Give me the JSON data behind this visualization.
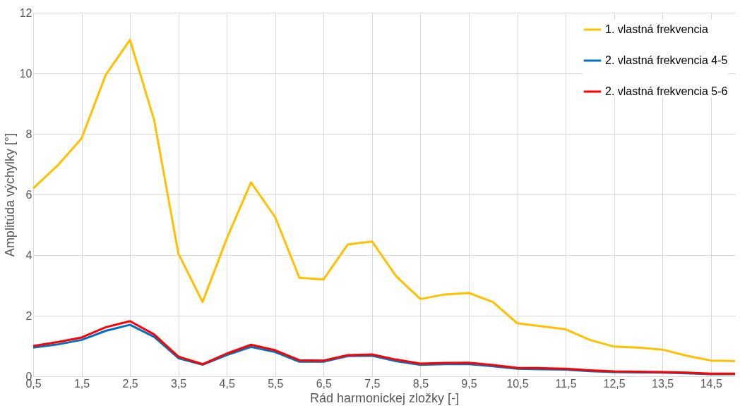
{
  "chart_data": {
    "type": "line",
    "xlabel": "Rád harmonickej zložky [-]",
    "ylabel": "Amplitúda výchylky [°]",
    "categories": [
      "0,5",
      null,
      "1,5",
      null,
      "2,5",
      null,
      "3,5",
      null,
      "4,5",
      null,
      "5,5",
      null,
      "6,5",
      null,
      "7,5",
      null,
      "8,5",
      null,
      "9,5",
      null,
      "10,5",
      null,
      "11,5",
      null,
      "12,5",
      null,
      "13,5",
      null,
      "14,5",
      null
    ],
    "series": [
      {
        "name": "1. vlastná frekvencia",
        "color": "#ffc000",
        "values": [
          6.2,
          6.95,
          7.85,
          9.95,
          11.1,
          8.45,
          4.05,
          2.45,
          4.55,
          6.4,
          5.25,
          3.25,
          3.2,
          4.35,
          4.45,
          3.3,
          2.55,
          2.7,
          2.75,
          2.45,
          1.75,
          1.65,
          1.55,
          1.2,
          0.98,
          0.95,
          0.88,
          0.68,
          0.52,
          0.5
        ]
      },
      {
        "name": "2. vlastná frekvencia 4-5",
        "color": "#0070c0",
        "values": [
          0.95,
          1.05,
          1.2,
          1.5,
          1.7,
          1.3,
          0.6,
          0.38,
          0.7,
          0.97,
          0.8,
          0.48,
          0.48,
          0.67,
          0.68,
          0.5,
          0.38,
          0.4,
          0.4,
          0.33,
          0.25,
          0.23,
          0.22,
          0.17,
          0.14,
          0.13,
          0.12,
          0.1,
          0.07,
          0.07
        ]
      },
      {
        "name": "2. vlastná frekvencia 5-6",
        "color": "#ff0000",
        "values": [
          1.0,
          1.13,
          1.28,
          1.62,
          1.82,
          1.38,
          0.65,
          0.4,
          0.75,
          1.04,
          0.86,
          0.53,
          0.52,
          0.7,
          0.72,
          0.55,
          0.42,
          0.44,
          0.45,
          0.37,
          0.28,
          0.27,
          0.25,
          0.2,
          0.16,
          0.15,
          0.14,
          0.12,
          0.09,
          0.09
        ]
      }
    ],
    "ylim": [
      0,
      12
    ],
    "yticks": [
      0,
      2,
      4,
      6,
      8,
      10,
      12
    ],
    "grid": true,
    "legend": "top right",
    "marker": "none",
    "line_style": "solid"
  }
}
